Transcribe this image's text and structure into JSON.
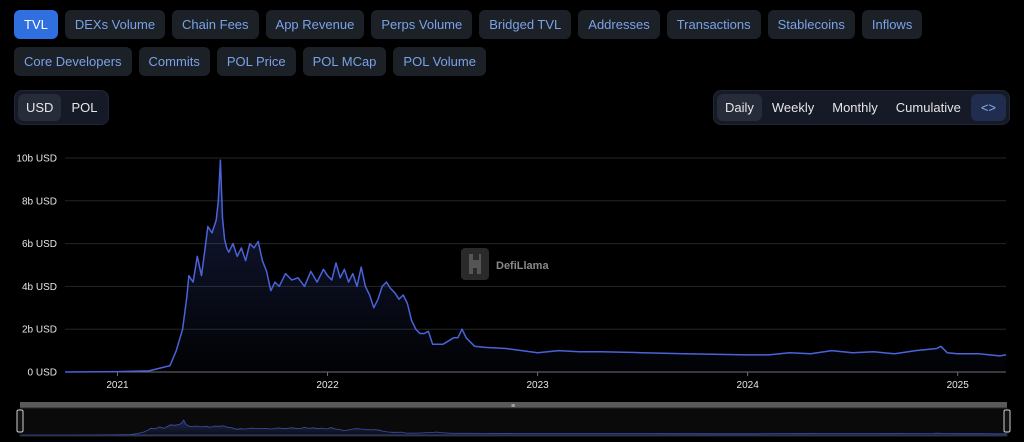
{
  "tabs_row1": [
    "TVL",
    "DEXs Volume",
    "Chain Fees",
    "App Revenue",
    "Perps Volume",
    "Bridged TVL",
    "Addresses",
    "Transactions",
    "Stablecoins",
    "Inflows"
  ],
  "tabs_row2": [
    "Core Developers",
    "Commits",
    "POL Price",
    "POL MCap",
    "POL Volume"
  ],
  "active_tab": "TVL",
  "currency_toggle": {
    "options": [
      "USD",
      "POL"
    ],
    "selected": "USD"
  },
  "period_toggle": {
    "options": [
      "Daily",
      "Weekly",
      "Monthly",
      "Cumulative"
    ],
    "selected": "Daily",
    "embed_icon": "code-icon",
    "embed_label": "<>"
  },
  "watermark": {
    "text": "DefiLlama",
    "icon": "llama-logo"
  },
  "colors": {
    "line": "#4a63d9",
    "active_tab": "#2f6fe0",
    "tab_text": "#7aa2e8"
  },
  "chart_data": {
    "type": "area",
    "title": "",
    "xlabel": "",
    "ylabel": "",
    "y_unit": "USD",
    "y_ticks": [
      "0 USD",
      "2b USD",
      "4b USD",
      "6b USD",
      "8b USD",
      "10b USD"
    ],
    "x_ticks": [
      "2021",
      "2022",
      "2023",
      "2024",
      "2025"
    ],
    "ylim": [
      0,
      10
    ],
    "xlim": [
      2020.75,
      2025.23
    ],
    "grid": true,
    "legend": "none",
    "series": [
      {
        "values_unit": "billion USD",
        "x": [
          2020.75,
          2021.0,
          2021.15,
          2021.25,
          2021.28,
          2021.31,
          2021.33,
          2021.34,
          2021.36,
          2021.38,
          2021.4,
          2021.42,
          2021.43,
          2021.45,
          2021.47,
          2021.48,
          2021.49,
          2021.5,
          2021.51,
          2021.52,
          2021.53,
          2021.55,
          2021.57,
          2021.59,
          2021.61,
          2021.63,
          2021.65,
          2021.67,
          2021.69,
          2021.71,
          2021.73,
          2021.75,
          2021.77,
          2021.8,
          2021.83,
          2021.86,
          2021.89,
          2021.92,
          2021.95,
          2021.98,
          2022.0,
          2022.02,
          2022.04,
          2022.06,
          2022.08,
          2022.1,
          2022.12,
          2022.14,
          2022.16,
          2022.18,
          2022.2,
          2022.22,
          2022.24,
          2022.26,
          2022.28,
          2022.3,
          2022.32,
          2022.34,
          2022.36,
          2022.38,
          2022.4,
          2022.42,
          2022.44,
          2022.46,
          2022.48,
          2022.5,
          2022.55,
          2022.6,
          2022.62,
          2022.64,
          2022.66,
          2022.7,
          2022.75,
          2022.85,
          2023.0,
          2023.1,
          2023.2,
          2023.3,
          2023.5,
          2023.7,
          2023.9,
          2024.0,
          2024.1,
          2024.2,
          2024.3,
          2024.4,
          2024.5,
          2024.6,
          2024.7,
          2024.8,
          2024.9,
          2024.92,
          2024.95,
          2025.0,
          2025.1,
          2025.2,
          2025.23
        ],
        "values": [
          0.0,
          0.02,
          0.05,
          0.3,
          1.0,
          2.0,
          3.5,
          4.5,
          4.2,
          5.4,
          4.5,
          6.0,
          6.8,
          6.5,
          7.1,
          8.0,
          9.9,
          7.2,
          6.2,
          5.8,
          5.6,
          6.0,
          5.4,
          5.8,
          5.2,
          6.0,
          5.8,
          6.1,
          5.2,
          4.7,
          3.8,
          4.2,
          4.0,
          4.6,
          4.3,
          4.4,
          4.0,
          4.7,
          4.2,
          4.8,
          4.5,
          4.3,
          5.1,
          4.4,
          4.8,
          4.2,
          4.6,
          4.0,
          4.9,
          4.0,
          3.6,
          3.0,
          3.4,
          4.0,
          4.2,
          3.9,
          3.7,
          3.4,
          3.6,
          3.2,
          2.4,
          2.0,
          1.8,
          1.8,
          1.9,
          1.3,
          1.3,
          1.6,
          1.6,
          2.0,
          1.6,
          1.2,
          1.15,
          1.1,
          0.9,
          1.0,
          0.95,
          0.95,
          0.9,
          0.85,
          0.82,
          0.8,
          0.8,
          0.9,
          0.85,
          1.0,
          0.9,
          0.95,
          0.85,
          1.0,
          1.1,
          1.2,
          0.9,
          0.85,
          0.85,
          0.75,
          0.8
        ]
      }
    ]
  }
}
